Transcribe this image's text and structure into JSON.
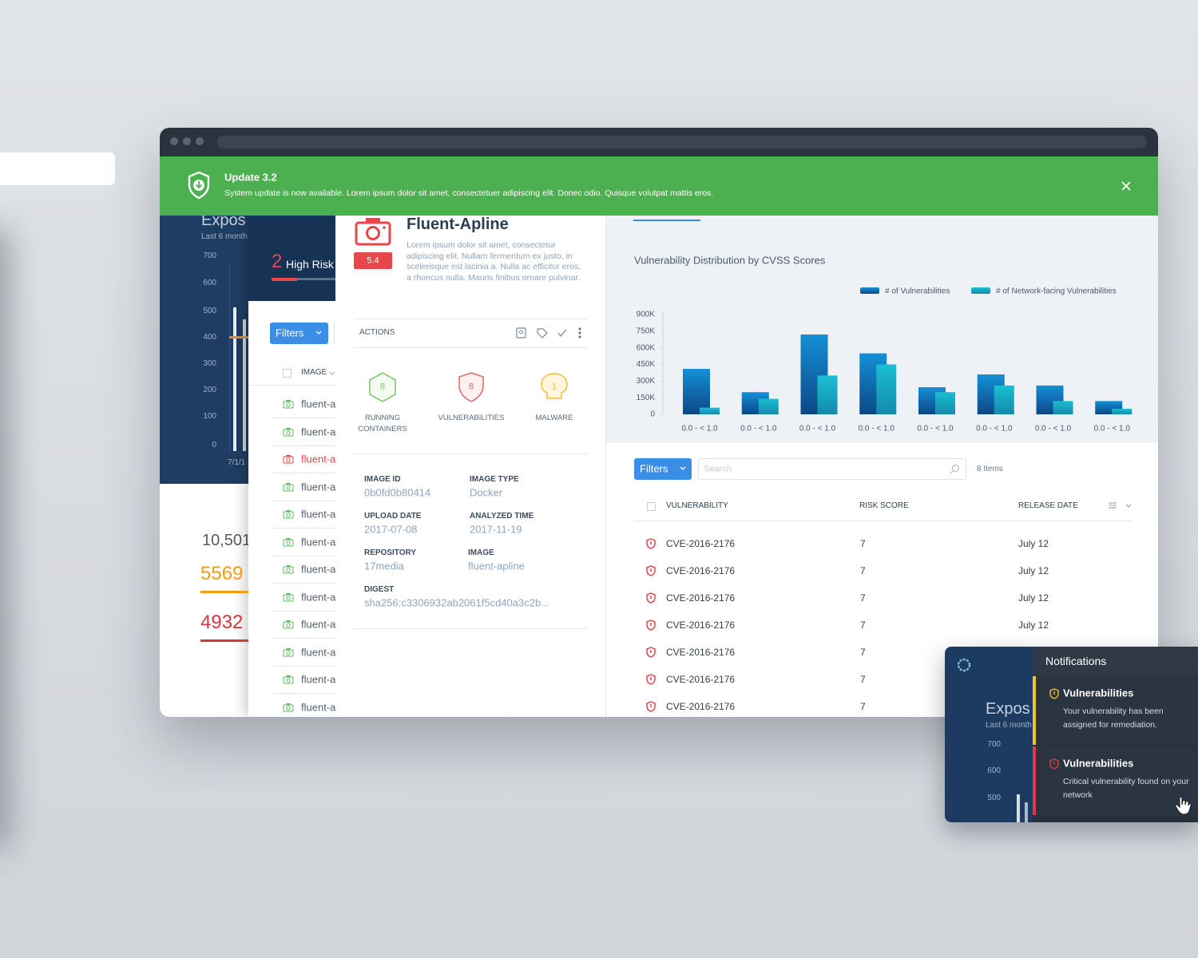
{
  "banner": {
    "title": "Update 3.2",
    "message": "System update is now available. Lorem ipsum dolor sit amet, consectetuer adipiscing elit. Donec odio. Quisque volutpat mattis eros."
  },
  "background_dashboard": {
    "title": "Expos",
    "subtitle": "Last 6 month",
    "yticks": [
      700,
      600,
      500,
      400,
      300,
      200,
      100,
      0
    ],
    "x_label": "7/1/1",
    "total": "10,501",
    "stats": [
      {
        "value": 5569,
        "color": "#f39c12"
      },
      {
        "value": 4932,
        "color": "#d9363b"
      }
    ]
  },
  "image_list": {
    "count": 2,
    "count_label": "High Risk",
    "filters": "Filters",
    "column": "IMAGE",
    "rows": [
      {
        "name": "fluent-a",
        "icon_color": "#5cb85c",
        "text_color": "#55606b"
      },
      {
        "name": "fluent-a",
        "icon_color": "#5cb85c",
        "text_color": "#55606b"
      },
      {
        "name": "fluent-a",
        "icon_color": "#e5474b",
        "text_color": "#e5474b"
      },
      {
        "name": "fluent-a",
        "icon_color": "#5cb85c",
        "text_color": "#55606b"
      },
      {
        "name": "fluent-a",
        "icon_color": "#5cb85c",
        "text_color": "#55606b"
      },
      {
        "name": "fluent-a",
        "icon_color": "#5cb85c",
        "text_color": "#55606b"
      },
      {
        "name": "fluent-a",
        "icon_color": "#5cb85c",
        "text_color": "#55606b"
      },
      {
        "name": "fluent-a",
        "icon_color": "#5cb85c",
        "text_color": "#55606b"
      },
      {
        "name": "fluent-a",
        "icon_color": "#5cb85c",
        "text_color": "#55606b"
      },
      {
        "name": "fluent-a",
        "icon_color": "#5cb85c",
        "text_color": "#55606b"
      },
      {
        "name": "fluent-a",
        "icon_color": "#5cb85c",
        "text_color": "#55606b"
      },
      {
        "name": "fluent-a",
        "icon_color": "#5cb85c",
        "text_color": "#55606b"
      }
    ]
  },
  "image_detail": {
    "name": "Fluent-Apline",
    "score": 5.4,
    "description": "Lorem ipsum dolor sit amet, consectetur adipiscing elit. Nullam fermentum ex justo, in scelerisque est lacinia a. Nulla ac efficitur eros, a rhoncus nulla. Mauris finibus ornare pulvinar.",
    "actions_label": "ACTIONS",
    "stats": [
      {
        "value": 8,
        "label": "RUNNING CONTAINERS",
        "color": "#7cc36e"
      },
      {
        "value": 8,
        "label": "VULNERABILITIES",
        "color": "#e56565"
      },
      {
        "value": 1,
        "label": "MALWARE",
        "color": "#f2bd3f"
      }
    ],
    "fields": [
      {
        "label": "IMAGE ID",
        "value": "0b0fd0b80414"
      },
      {
        "label": "IMAGE TYPE",
        "value": "Docker"
      },
      {
        "label": "UPLOAD DATE",
        "value": "2017-07-08"
      },
      {
        "label": "ANALYZED TIME",
        "value": "2017-11-19"
      },
      {
        "label": "REPOSITORY",
        "value": "17media"
      },
      {
        "label": "IMAGE",
        "value": "fluent-apline"
      },
      {
        "label": "DIGEST",
        "value": "sha256:c3306932ab2061f5cd40a3c2b..."
      }
    ]
  },
  "chart_data": {
    "type": "bar",
    "title": "Vulnerability Distribution by CVSS Scores",
    "categories": [
      "0.0 - < 1.0",
      "0.0 - < 1.0",
      "0.0 - < 1.0",
      "0.0 - < 1.0",
      "0.0 - < 1.0",
      "0.0 - < 1.0",
      "0.0 - < 1.0",
      "0.0 - < 1.0"
    ],
    "series": [
      {
        "name": "# of Vulnerabilities",
        "color": "#1590d6",
        "values": [
          410000,
          200000,
          720000,
          550000,
          245000,
          360000,
          260000,
          120000
        ]
      },
      {
        "name": "# of Network-facing Vulnerabilities",
        "color": "#19bfd2",
        "values": [
          60000,
          140000,
          350000,
          450000,
          200000,
          260000,
          120000,
          50000
        ]
      }
    ],
    "ylim": [
      0,
      900000
    ],
    "yticks": [
      0,
      {
        "value": 150000,
        "label": "150K"
      },
      {
        "value": 300000,
        "label": "300K"
      },
      {
        "value": 450000,
        "label": "450K"
      },
      {
        "value": 600000,
        "label": "600K"
      },
      {
        "value": 750000,
        "label": "750K"
      },
      {
        "value": 900000,
        "label": "900K"
      }
    ],
    "grid": false,
    "legend": "top-right"
  },
  "vulnerability_table": {
    "filters": "Filters",
    "search_placeholder": "Search",
    "item_count": "8 Items",
    "columns": [
      "VULNERABILITY",
      "RISK SCORE",
      "RELEASE DATE"
    ],
    "rows": [
      [
        "CVE-2016-2176",
        7,
        "July 12"
      ],
      [
        "CVE-2016-2176",
        7,
        "July 12"
      ],
      [
        "CVE-2016-2176",
        7,
        "July 12"
      ],
      [
        "CVE-2016-2176",
        7,
        "July 12"
      ],
      [
        "CVE-2016-2176",
        7
      ],
      [
        "CVE-2016-2176",
        7
      ],
      [
        "CVE-2016-2176",
        7
      ]
    ]
  },
  "notifications": {
    "title": "Notifications",
    "background": {
      "title": "Expos",
      "subtitle": "Last 6 month",
      "yticks": [
        700,
        600,
        500
      ]
    },
    "items": [
      {
        "title": "Vulnerabilities",
        "message": "Your vulnerability has been assigned for remediation.",
        "color": "#f4c22b"
      },
      {
        "title": "Vulnerabilities",
        "message": "Critical vulnerability found on your network",
        "color": "#e0393e"
      }
    ]
  }
}
